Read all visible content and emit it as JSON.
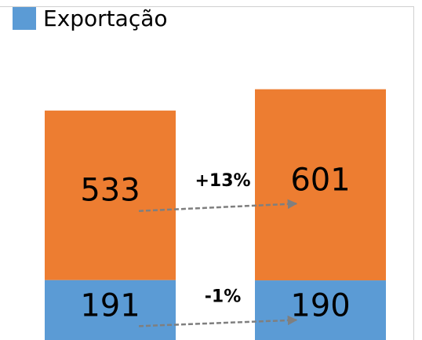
{
  "chart_data": {
    "type": "bar",
    "stacked": true,
    "categories": [
      null,
      null
    ],
    "series": [
      {
        "name": "Exportação",
        "color": "#5b9bd5",
        "values": [
          191,
          190
        ]
      },
      {
        "color": "#ed7d31",
        "values": [
          533,
          601
        ]
      }
    ],
    "ylim": [
      0,
      1000
    ],
    "annotations": [
      "-1%",
      "+13%"
    ]
  }
}
